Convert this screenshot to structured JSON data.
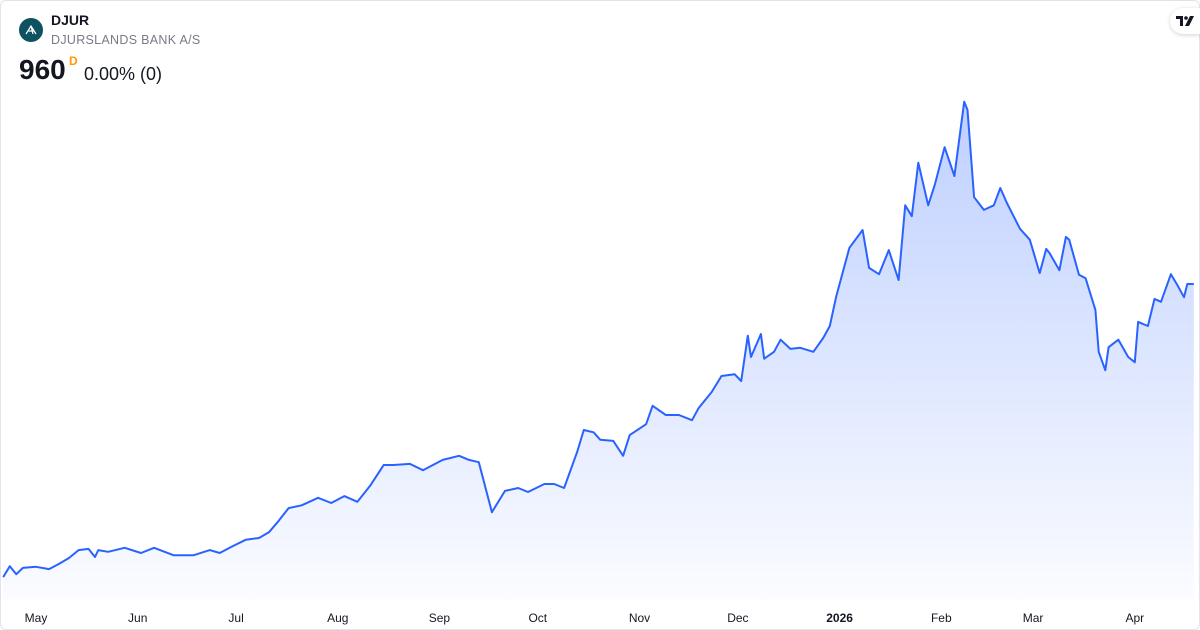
{
  "header": {
    "symbol": "DJUR",
    "name": "DJURSLANDS BANK A/S",
    "price": "960",
    "currency_marker": "D",
    "change": "0.00% (0)",
    "logo_icon": "djurslands-bank-logo",
    "brand_icon": "tradingview-logo",
    "brand_text": "TV"
  },
  "colors": {
    "line": "#2962ff",
    "fill": "#2962ff",
    "currency_marker": "#ff9800",
    "logo_bg": "#0e5261"
  },
  "chart_data": {
    "type": "area",
    "title": "",
    "xlabel": "",
    "ylabel": "",
    "y_axis_shown": false,
    "grid": false,
    "note_values": "approximate, estimated from line shape; only last value (960) printed",
    "x_ticks": [
      {
        "date": "2025-05-01",
        "label": "May",
        "bold": false
      },
      {
        "date": "2025-06-01",
        "label": "Jun",
        "bold": false
      },
      {
        "date": "2025-07-01",
        "label": "Jul",
        "bold": false
      },
      {
        "date": "2025-08-01",
        "label": "Aug",
        "bold": false
      },
      {
        "date": "2025-09-01",
        "label": "Sep",
        "bold": false
      },
      {
        "date": "2025-10-01",
        "label": "Oct",
        "bold": false
      },
      {
        "date": "2025-11-01",
        "label": "Nov",
        "bold": false
      },
      {
        "date": "2025-12-01",
        "label": "Dec",
        "bold": false
      },
      {
        "date": "2026-01-01",
        "label": "2026",
        "bold": true
      },
      {
        "date": "2026-02-01",
        "label": "Feb",
        "bold": false
      },
      {
        "date": "2026-03-01",
        "label": "Mar",
        "bold": false
      },
      {
        "date": "2026-04-01",
        "label": "Apr",
        "bold": false
      }
    ],
    "series": [
      {
        "points": [
          [
            "2025-04-21",
            450
          ],
          [
            "2025-04-23",
            469
          ],
          [
            "2025-04-25",
            455
          ],
          [
            "2025-04-27",
            466
          ],
          [
            "2025-05-01",
            468
          ],
          [
            "2025-05-05",
            464
          ],
          [
            "2025-05-08",
            473
          ],
          [
            "2025-05-11",
            483
          ],
          [
            "2025-05-14",
            497
          ],
          [
            "2025-05-17",
            499
          ],
          [
            "2025-05-19",
            485
          ],
          [
            "2025-05-20",
            497
          ],
          [
            "2025-05-23",
            494
          ],
          [
            "2025-05-28",
            501
          ],
          [
            "2025-06-02",
            492
          ],
          [
            "2025-06-06",
            501
          ],
          [
            "2025-06-12",
            488
          ],
          [
            "2025-06-18",
            488
          ],
          [
            "2025-06-23",
            497
          ],
          [
            "2025-06-26",
            492
          ],
          [
            "2025-06-30",
            504
          ],
          [
            "2025-07-04",
            515
          ],
          [
            "2025-07-08",
            518
          ],
          [
            "2025-07-11",
            528
          ],
          [
            "2025-07-14",
            548
          ],
          [
            "2025-07-17",
            570
          ],
          [
            "2025-07-21",
            575
          ],
          [
            "2025-07-26",
            588
          ],
          [
            "2025-07-30",
            579
          ],
          [
            "2025-08-03",
            591
          ],
          [
            "2025-08-07",
            581
          ],
          [
            "2025-08-11",
            610
          ],
          [
            "2025-08-15",
            645
          ],
          [
            "2025-08-18",
            645
          ],
          [
            "2025-08-23",
            647
          ],
          [
            "2025-08-27",
            636
          ],
          [
            "2025-09-02",
            654
          ],
          [
            "2025-09-07",
            661
          ],
          [
            "2025-09-10",
            654
          ],
          [
            "2025-09-13",
            650
          ],
          [
            "2025-09-17",
            563
          ],
          [
            "2025-09-21",
            600
          ],
          [
            "2025-09-25",
            605
          ],
          [
            "2025-09-28",
            598
          ],
          [
            "2025-10-03",
            612
          ],
          [
            "2025-10-06",
            612
          ],
          [
            "2025-10-09",
            605
          ],
          [
            "2025-10-13",
            668
          ],
          [
            "2025-10-15",
            706
          ],
          [
            "2025-10-18",
            702
          ],
          [
            "2025-10-20",
            689
          ],
          [
            "2025-10-24",
            687
          ],
          [
            "2025-10-27",
            661
          ],
          [
            "2025-10-29",
            697
          ],
          [
            "2025-11-03",
            716
          ],
          [
            "2025-11-05",
            748
          ],
          [
            "2025-11-09",
            732
          ],
          [
            "2025-11-13",
            732
          ],
          [
            "2025-11-17",
            723
          ],
          [
            "2025-11-19",
            744
          ],
          [
            "2025-11-23",
            772
          ],
          [
            "2025-11-26",
            800
          ],
          [
            "2025-11-30",
            803
          ],
          [
            "2025-12-02",
            791
          ],
          [
            "2025-12-04",
            870
          ],
          [
            "2025-12-05",
            833
          ],
          [
            "2025-12-08",
            873
          ],
          [
            "2025-12-09",
            830
          ],
          [
            "2025-12-12",
            842
          ],
          [
            "2025-12-14",
            863
          ],
          [
            "2025-12-17",
            847
          ],
          [
            "2025-12-20",
            849
          ],
          [
            "2025-12-24",
            842
          ],
          [
            "2025-12-27",
            866
          ],
          [
            "2025-12-29",
            887
          ],
          [
            "2025-12-31",
            939
          ],
          [
            "2026-01-04",
            1023
          ],
          [
            "2026-01-08",
            1054
          ],
          [
            "2026-01-10",
            988
          ],
          [
            "2026-01-13",
            977
          ],
          [
            "2026-01-16",
            1019
          ],
          [
            "2026-01-19",
            967
          ],
          [
            "2026-01-21",
            1097
          ],
          [
            "2026-01-23",
            1078
          ],
          [
            "2026-01-25",
            1171
          ],
          [
            "2026-01-28",
            1097
          ],
          [
            "2026-01-30",
            1132
          ],
          [
            "2026-02-02",
            1198
          ],
          [
            "2026-02-05",
            1148
          ],
          [
            "2026-02-08",
            1277
          ],
          [
            "2026-02-09",
            1263
          ],
          [
            "2026-02-11",
            1111
          ],
          [
            "2026-02-14",
            1089
          ],
          [
            "2026-02-17",
            1097
          ],
          [
            "2026-02-19",
            1127
          ],
          [
            "2026-02-21",
            1101
          ],
          [
            "2026-02-25",
            1056
          ],
          [
            "2026-02-28",
            1037
          ],
          [
            "2026-03-03",
            979
          ],
          [
            "2026-03-05",
            1021
          ],
          [
            "2026-03-06",
            1014
          ],
          [
            "2026-03-09",
            984
          ],
          [
            "2026-03-11",
            1042
          ],
          [
            "2026-03-12",
            1037
          ],
          [
            "2026-03-15",
            976
          ],
          [
            "2026-03-17",
            970
          ],
          [
            "2026-03-20",
            915
          ],
          [
            "2026-03-21",
            842
          ],
          [
            "2026-03-23",
            810
          ],
          [
            "2026-03-24",
            850
          ],
          [
            "2026-03-27",
            863
          ],
          [
            "2026-03-30",
            833
          ],
          [
            "2026-04-01",
            824
          ],
          [
            "2026-04-02",
            894
          ],
          [
            "2026-04-05",
            887
          ],
          [
            "2026-04-07",
            934
          ],
          [
            "2026-04-09",
            929
          ],
          [
            "2026-04-12",
            977
          ],
          [
            "2026-04-14",
            958
          ],
          [
            "2026-04-16",
            937
          ],
          [
            "2026-04-17",
            960
          ],
          [
            "2026-04-19",
            960
          ]
        ]
      }
    ]
  }
}
